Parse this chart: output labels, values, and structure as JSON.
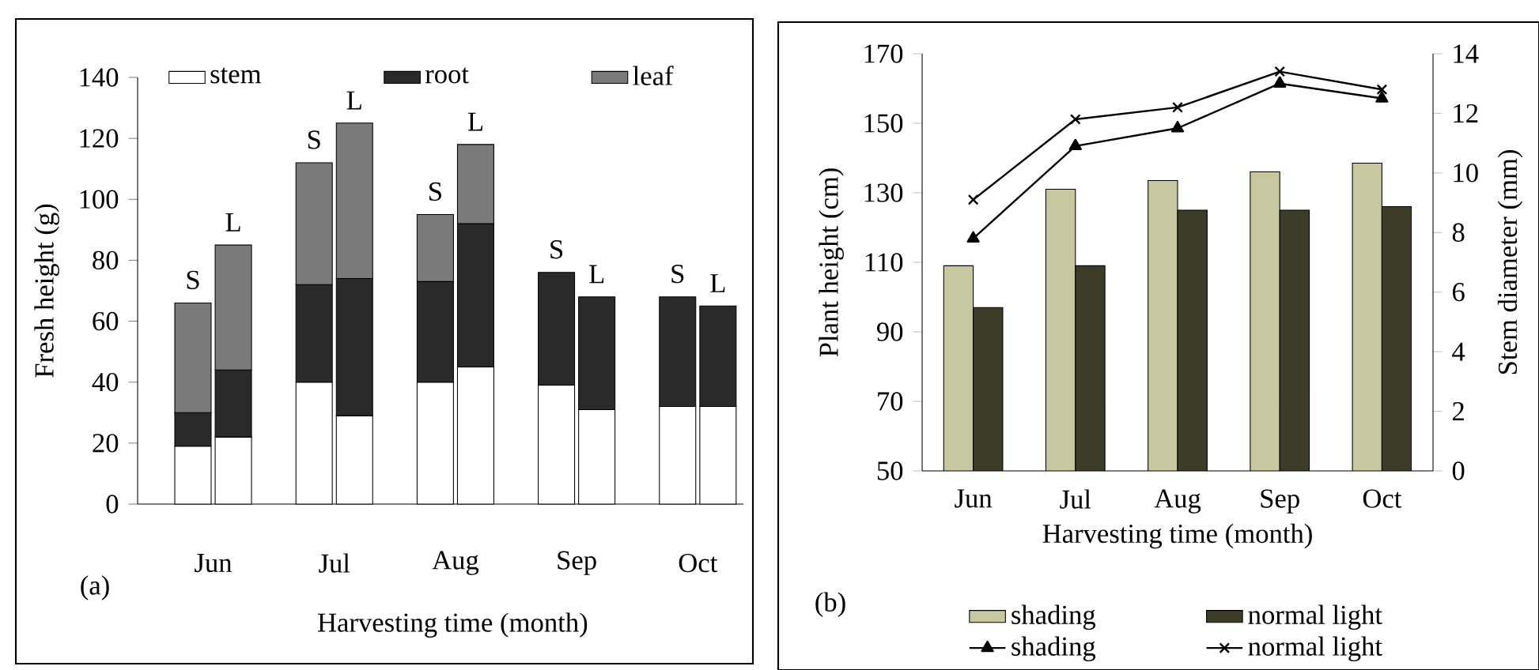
{
  "chart_data": [
    {
      "type": "bar",
      "stacked": true,
      "categories": [
        "S",
        "L",
        "S",
        "L",
        "S",
        "L",
        "S",
        "L",
        "S",
        "L"
      ],
      "series": [
        {
          "name": "stem",
          "color": "#ffffff",
          "values": [
            19,
            22,
            40,
            29,
            40,
            45,
            39,
            31,
            32,
            32
          ]
        },
        {
          "name": "root",
          "color": "#2a2a2a",
          "values": [
            11,
            22,
            32,
            45,
            33,
            47,
            37,
            37,
            36,
            33
          ]
        },
        {
          "name": "leaf",
          "color": "#7a7a7a",
          "values": [
            36,
            41,
            40,
            51,
            22,
            26,
            null,
            null,
            null,
            null
          ]
        }
      ],
      "ylim": [
        0,
        140
      ],
      "yticks": [
        0,
        20,
        40,
        60,
        80,
        100,
        120,
        140
      ],
      "ylabel": "Fresh height (g)",
      "xlabel": "Harvesting time (month)",
      "legend": "top",
      "annotations": [
        "Jun",
        "Jul",
        "Aug",
        "Sep",
        "Oct",
        "(a)"
      ]
    },
    {
      "type": "bar",
      "categories": [
        "Jun",
        "Jul",
        "Aug",
        "Sep",
        "Oct"
      ],
      "series": [
        {
          "name": "shading",
          "color": "#c8c8a0",
          "values": [
            109,
            131,
            133.5,
            136,
            138.5
          ]
        },
        {
          "name": "normal light",
          "color": "#3c3c28",
          "values": [
            97,
            109,
            125,
            125,
            126
          ]
        },
        {
          "name": "shading",
          "type": "line",
          "axis": "y2",
          "color": "#000000",
          "marker": "triangle",
          "values": [
            7.8,
            10.9,
            11.5,
            13.0,
            12.5
          ]
        },
        {
          "name": "normal light",
          "type": "line",
          "axis": "y2",
          "color": "#000000",
          "marker": "cross",
          "values": [
            9.1,
            11.8,
            12.2,
            13.4,
            12.8
          ]
        }
      ],
      "ylim": [
        50,
        170
      ],
      "yticks": [
        50,
        70,
        90,
        110,
        130,
        150,
        170
      ],
      "y2lim": [
        0,
        14
      ],
      "y2ticks": [
        0,
        2,
        4,
        6,
        8,
        10,
        12,
        14
      ],
      "ylabel": "Plant height (cm)",
      "y2label": "Stem diameter (mm)",
      "xlabel": "Harvesting time (month)",
      "legend": "bottom",
      "annotations": [
        "(b)"
      ]
    }
  ]
}
